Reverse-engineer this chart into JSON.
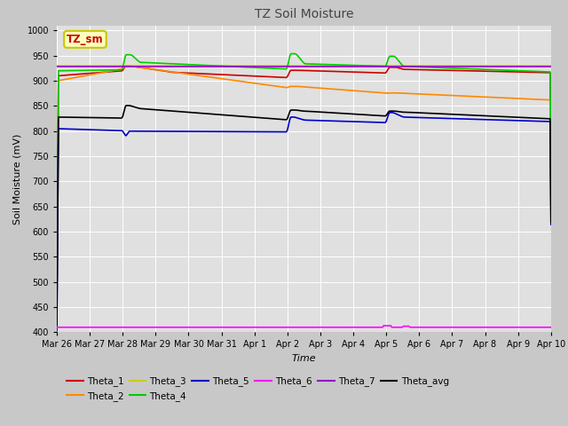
{
  "title": "TZ Soil Moisture",
  "ylabel": "Soil Moisture (mV)",
  "xlabel": "Time",
  "ylim": [
    400,
    1010
  ],
  "yticks": [
    400,
    450,
    500,
    550,
    600,
    650,
    700,
    750,
    800,
    850,
    900,
    950,
    1000
  ],
  "fig_bg_color": "#c8c8c8",
  "plot_bg": "#e0e0e0",
  "legend_label": "TZ_sm",
  "legend_bg": "#ffffc0",
  "legend_border": "#c8c800",
  "series": {
    "Theta_1": {
      "color": "#cc0000",
      "linewidth": 1.2
    },
    "Theta_2": {
      "color": "#ff8800",
      "linewidth": 1.2
    },
    "Theta_3": {
      "color": "#cccc00",
      "linewidth": 1.2
    },
    "Theta_4": {
      "color": "#00cc00",
      "linewidth": 1.2
    },
    "Theta_5": {
      "color": "#0000cc",
      "linewidth": 1.2
    },
    "Theta_6": {
      "color": "#ff00ff",
      "linewidth": 1.2
    },
    "Theta_7": {
      "color": "#9900cc",
      "linewidth": 1.2
    },
    "Theta_avg": {
      "color": "#000000",
      "linewidth": 1.2
    }
  },
  "date_labels": [
    "Mar 26",
    "Mar 27",
    "Mar 28",
    "Mar 29",
    "Mar 30",
    "Mar 31",
    "Apr 1",
    "Apr 2",
    "Apr 3",
    "Apr 4",
    "Apr 5",
    "Apr 6",
    "Apr 7",
    "Apr 8",
    "Apr 9",
    "Apr 10"
  ],
  "n_days": 15
}
